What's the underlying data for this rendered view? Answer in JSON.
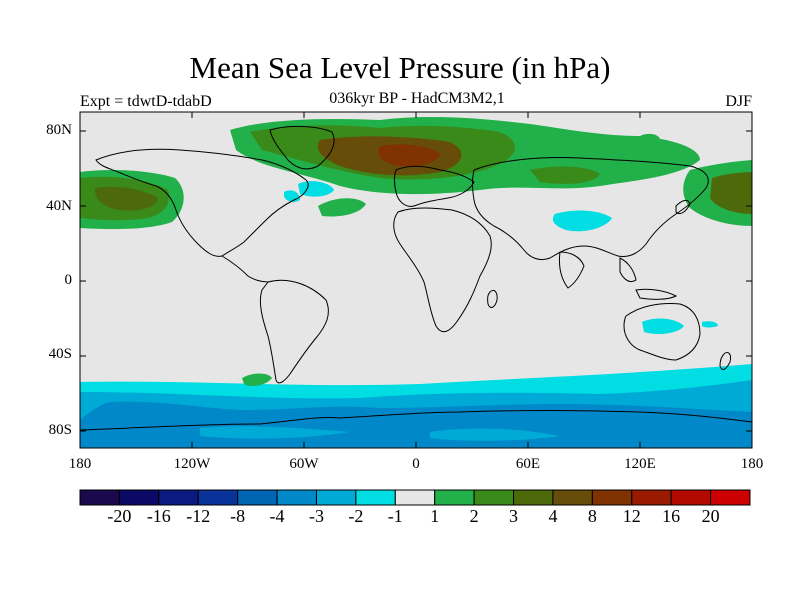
{
  "title": "Mean Sea Level Pressure (in hPa)",
  "subtitle": "036kyr BP - HadCM3M2,1",
  "left_label": "Expt = tdwtD-tdabD",
  "right_label": "DJF",
  "map": {
    "y_ticks": [
      "80N",
      "40N",
      "0",
      "40S",
      "80S"
    ],
    "x_ticks": [
      "180",
      "120W",
      "60W",
      "0",
      "60E",
      "120E",
      "180"
    ],
    "colors": {
      "background_fill": "#e6e6e6",
      "land_outline": "#000000"
    }
  },
  "colorbar": {
    "colors": [
      "#1a0a4d",
      "#0a0a66",
      "#0a1a80",
      "#0a3399",
      "#0066b3",
      "#0088c8",
      "#00aad6",
      "#00dde3",
      "#e6e6e6",
      "#22b04a",
      "#3a8a1a",
      "#4d6a0a",
      "#664d0a",
      "#803300",
      "#9a1a00",
      "#b30a00",
      "#cc0000"
    ],
    "labels": [
      "-20",
      "-16",
      "-12",
      "-8",
      "-4",
      "-3",
      "-2",
      "-1",
      "1",
      "2",
      "3",
      "4",
      "8",
      "12",
      "16",
      "20"
    ]
  }
}
